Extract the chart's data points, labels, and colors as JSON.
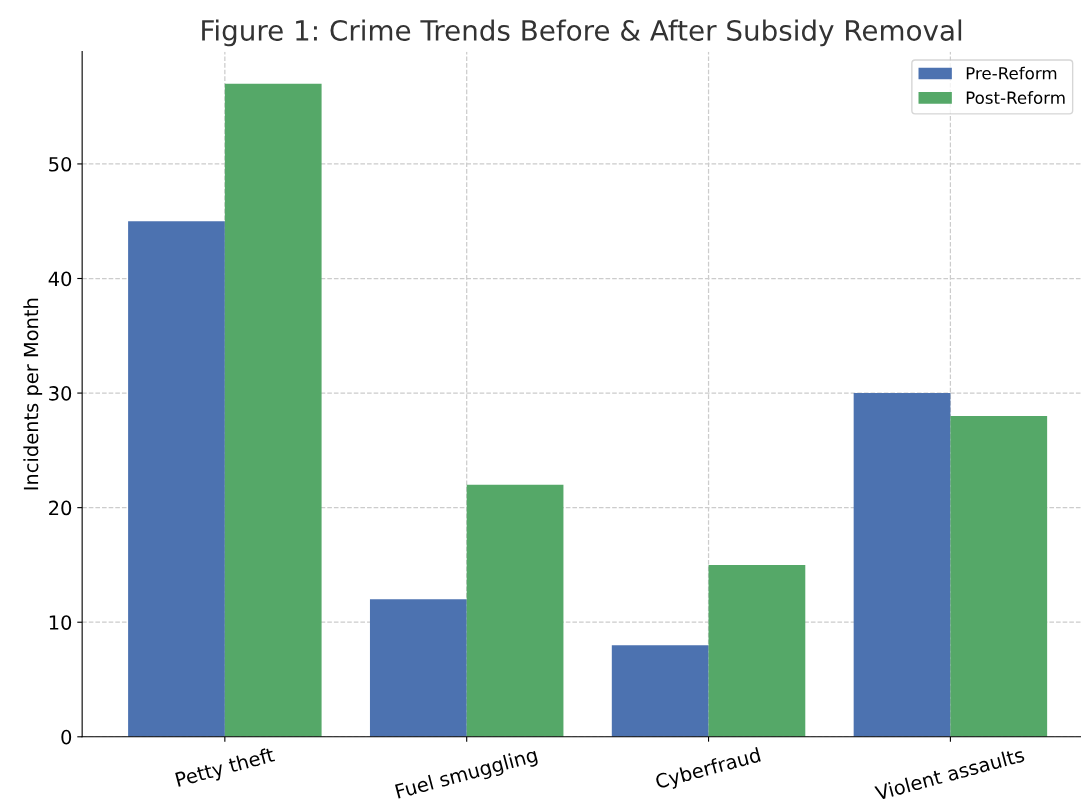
{
  "chart_data": {
    "type": "bar",
    "title": "Figure 1: Crime Trends Before & After Subsidy Removal",
    "ylabel": "Incidents per Month",
    "categories": [
      "Petty theft",
      "Fuel smuggling",
      "Cyberfraud",
      "Violent assaults"
    ],
    "series": [
      {
        "name": "Pre-Reform",
        "color": "#4c72b0",
        "values": [
          45,
          12,
          8,
          30
        ]
      },
      {
        "name": "Post-Reform",
        "color": "#55a868",
        "values": [
          57,
          22,
          15,
          28
        ]
      }
    ],
    "ylim": [
      0,
      59.8
    ],
    "yticks": [
      0,
      10,
      20,
      30,
      40,
      50
    ],
    "grid": true,
    "legend": "top right"
  }
}
